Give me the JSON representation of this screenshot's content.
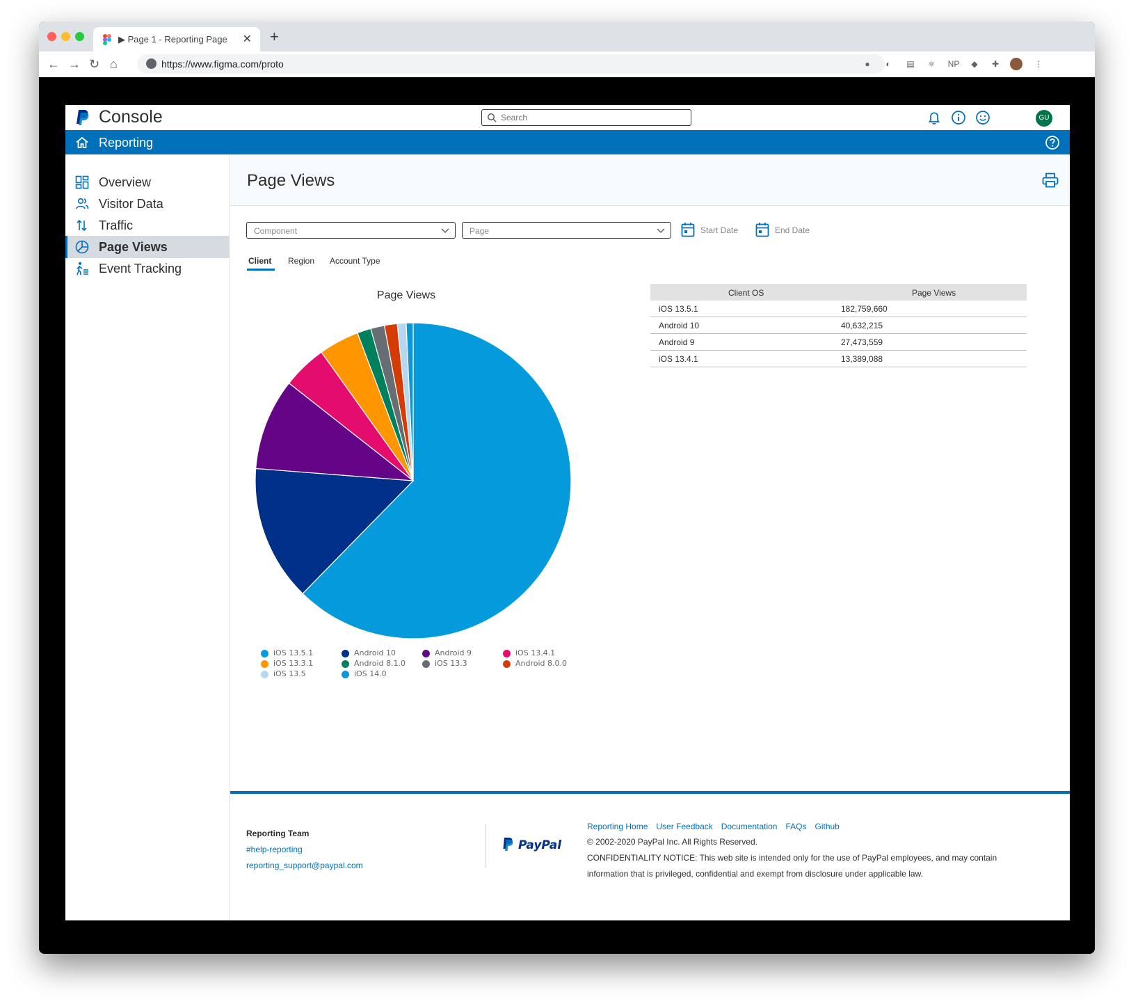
{
  "browser": {
    "tab_title": "▶ Page 1 - Reporting Page",
    "tab_close": "✕",
    "new_tab": "+",
    "url": "https://www.figma.com/proto",
    "ext_np": "NP"
  },
  "header": {
    "brand": "Console",
    "search_placeholder": "Search",
    "avatar_initials": "GU"
  },
  "section_bar": {
    "title": "Reporting"
  },
  "sidebar": {
    "items": [
      {
        "label": "Overview",
        "icon": "grid-icon"
      },
      {
        "label": "Visitor Data",
        "icon": "users-icon"
      },
      {
        "label": "Traffic",
        "icon": "arrows-updown-icon"
      },
      {
        "label": "Page Views",
        "icon": "pie-icon",
        "active": true
      },
      {
        "label": "Event Tracking",
        "icon": "walker-icon"
      }
    ]
  },
  "main": {
    "title": "Page Views",
    "filters": {
      "component_placeholder": "Component",
      "page_placeholder": "Page",
      "start_date": "Start Date",
      "end_date": "End Date"
    },
    "tabs": [
      {
        "label": "Client",
        "active": true
      },
      {
        "label": "Region"
      },
      {
        "label": "Account Type"
      }
    ]
  },
  "chart_data": {
    "type": "pie",
    "title": "Page Views",
    "slices": [
      {
        "label": "iOS 13.5.1",
        "value": 61.9,
        "color": "#059adb"
      },
      {
        "label": "Android 10",
        "value": 13.8,
        "color": "#003087"
      },
      {
        "label": "Android 9",
        "value": 9.3,
        "color": "#640487"
      },
      {
        "label": "iOS 13.4.1",
        "value": 4.5,
        "color": "#e40c6c"
      },
      {
        "label": "iOS 13.3.1",
        "value": 4.1,
        "color": "#ff9600"
      },
      {
        "label": "Android 8.1.0",
        "value": 1.4,
        "color": "#00805c"
      },
      {
        "label": "iOS 13.3",
        "value": 1.4,
        "color": "#666d73"
      },
      {
        "label": "Android 8.0.0",
        "value": 1.3,
        "color": "#d53c05"
      },
      {
        "label": "iOS 13.5",
        "value": 0.9,
        "color": "#b7d6f0"
      },
      {
        "label": "iOS 14.0",
        "value": 0.7,
        "color": "#0a96d7"
      }
    ],
    "legend_position": "bottom"
  },
  "table": {
    "headers": [
      "Client OS",
      "Page Views"
    ],
    "rows": [
      [
        "iOS 13.5.1",
        "182,759,660"
      ],
      [
        "Android 10",
        "40,632,215"
      ],
      [
        "Android 9",
        "27,473,559"
      ],
      [
        "iOS 13.4.1",
        "13,389,088"
      ]
    ]
  },
  "footer": {
    "team": "Reporting Team",
    "slack": "#help-reporting",
    "email": "reporting_support@paypal.com",
    "links": [
      "Reporting Home",
      "User Feedback",
      "Documentation",
      "FAQs",
      "Github"
    ],
    "copyright": "© 2002-2020 PayPal Inc. All Rights Reserved.",
    "notice_line1": "CONFIDENTIALITY NOTICE: This web site is intended only for the use of PayPal employees, and may contain",
    "notice_line2": "information that is privileged, confidential and exempt from disclosure under applicable law.",
    "paypal_wordmark": "PayPal"
  },
  "colors": {
    "brand_blue": "#0070ba",
    "paypal_navy": "#003087",
    "avatar_green": "#00754a"
  }
}
